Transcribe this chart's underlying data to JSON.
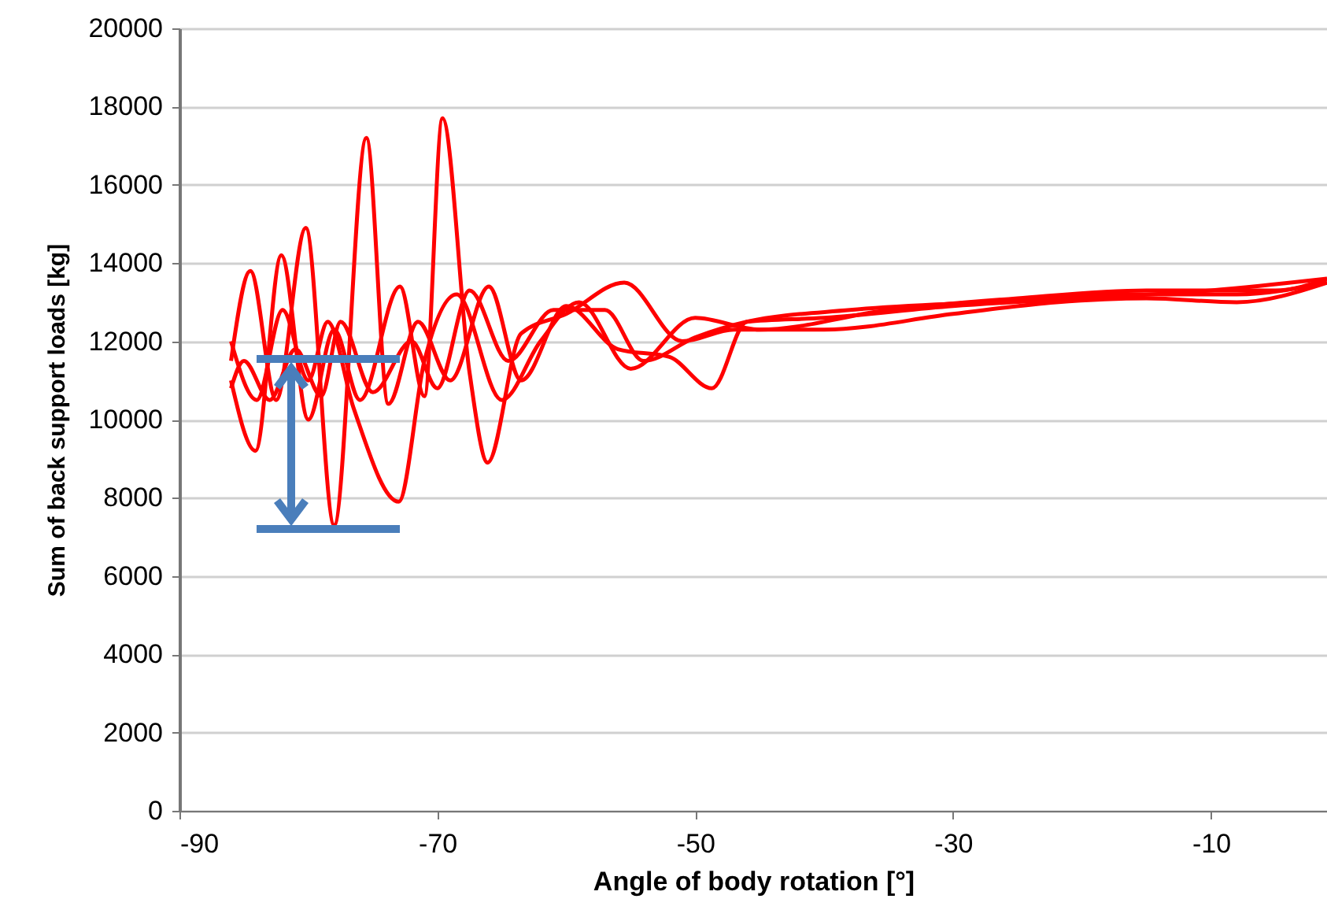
{
  "chart_data": {
    "type": "line",
    "xlabel": "Angle of body rotation [°]",
    "ylabel": "Sum of back support loads [kg]",
    "xlim": [
      -90,
      -1
    ],
    "xticks": [
      -90,
      -70,
      -50,
      -30,
      -10
    ],
    "ylim": [
      0,
      20000
    ],
    "yticks": [
      0,
      2000,
      4000,
      6000,
      8000,
      10000,
      12000,
      14000,
      16000,
      18000,
      20000
    ],
    "grid": "y",
    "line_style": "solid",
    "series": [
      {
        "color": "#ff0000",
        "x": [
          -86,
          -84.5,
          -82.5,
          -80.2,
          -78,
          -75.5,
          -73.8,
          -71.5,
          -69,
          -66,
          -63.5,
          -60,
          -56,
          -52,
          -48.7,
          -46,
          -40,
          -30,
          -20,
          -10,
          -1
        ],
        "values": [
          11500,
          13800,
          10500,
          14900,
          7300,
          17200,
          10400,
          12500,
          11000,
          13400,
          11000,
          12900,
          11800,
          11600,
          10800,
          12500,
          12600,
          12900,
          13100,
          13300,
          13600
        ]
      },
      {
        "color": "#ff0000",
        "x": [
          -86,
          -84.1,
          -82.1,
          -80,
          -78,
          -76,
          -72.9,
          -71,
          -69.6,
          -67.5,
          -66.1,
          -63.5,
          -60,
          -55.5,
          -51,
          -47,
          -40,
          -30,
          -22,
          -15,
          -8,
          -1
        ],
        "values": [
          11000,
          9200,
          14200,
          10000,
          12300,
          10500,
          13400,
          10600,
          17700,
          11200,
          8900,
          12200,
          12700,
          13500,
          12000,
          12300,
          12300,
          12700,
          13000,
          13100,
          13000,
          13500
        ]
      },
      {
        "color": "#ff0000",
        "x": [
          -86,
          -84,
          -82,
          -80,
          -78.5,
          -76.5,
          -73,
          -71,
          -68.5,
          -65,
          -62,
          -59,
          -55,
          -50,
          -45,
          -35,
          -25,
          -15,
          -5,
          -1
        ],
        "values": [
          12000,
          10500,
          12800,
          11000,
          12500,
          10300,
          7900,
          11500,
          13200,
          10500,
          12000,
          13000,
          11300,
          12600,
          12300,
          12800,
          13100,
          13300,
          13300,
          13600
        ]
      },
      {
        "color": "#ff0000",
        "x": [
          -86,
          -85,
          -83,
          -81,
          -79,
          -77.5,
          -75,
          -72,
          -70,
          -67.5,
          -64.5,
          -61,
          -57,
          -54,
          -50,
          -46,
          -38,
          -28,
          -18,
          -8,
          -1
        ],
        "values": [
          10800,
          11500,
          10500,
          11800,
          10600,
          12500,
          10700,
          12000,
          10800,
          13300,
          11500,
          12800,
          12800,
          11500,
          12100,
          12500,
          12800,
          13000,
          13200,
          13200,
          13500
        ]
      }
    ]
  }
}
